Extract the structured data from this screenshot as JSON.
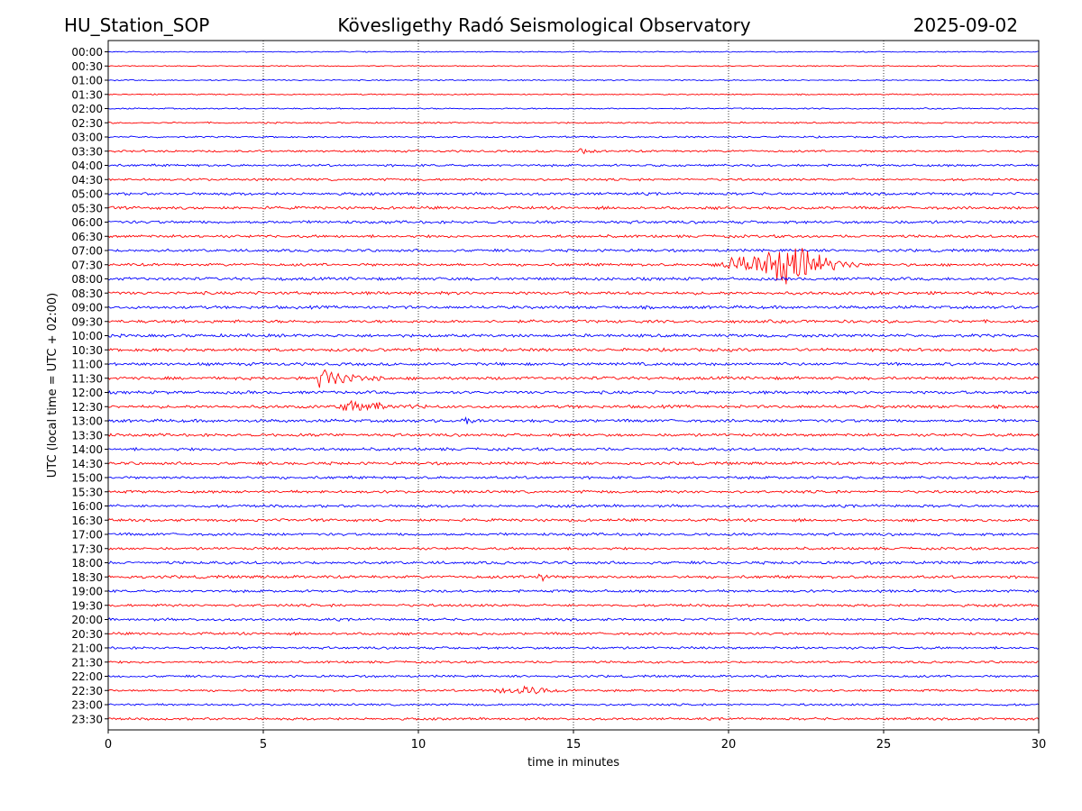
{
  "header": {
    "station": "HU_Station_SOP",
    "observatory": "Kövesligethy Radó Seismological Observatory",
    "date": "2025-09-02"
  },
  "chart_data": {
    "type": "line",
    "title": "Kövesligethy Radó Seismological Observatory",
    "xlabel": "time in minutes",
    "ylabel": "UTC (local time = UTC + 02:00)",
    "xlim": [
      0,
      30
    ],
    "x_ticks": [
      "0",
      "5",
      "10",
      "15",
      "20",
      "25",
      "30"
    ],
    "vertical_gridlines": "dotted at every 5 minutes",
    "trace_colors": [
      "#0000ff",
      "#ff0000"
    ],
    "rows": [
      "00:00",
      "00:30",
      "01:00",
      "01:30",
      "02:00",
      "02:30",
      "03:00",
      "03:30",
      "04:00",
      "04:30",
      "05:00",
      "05:30",
      "06:00",
      "06:30",
      "07:00",
      "07:30",
      "08:00",
      "08:30",
      "09:00",
      "09:30",
      "10:00",
      "10:30",
      "11:00",
      "11:30",
      "12:00",
      "12:30",
      "13:00",
      "13:30",
      "14:00",
      "14:30",
      "15:00",
      "15:30",
      "16:00",
      "16:30",
      "17:00",
      "17:30",
      "18:00",
      "18:30",
      "19:00",
      "19:30",
      "20:00",
      "20:30",
      "21:00",
      "21:30",
      "22:00",
      "22:30",
      "23:00",
      "23:30"
    ],
    "noise_levels": [
      0.35,
      0.35,
      0.4,
      0.4,
      0.45,
      0.5,
      0.55,
      0.7,
      0.75,
      0.75,
      0.9,
      0.95,
      0.95,
      0.9,
      0.9,
      0.9,
      1.0,
      1.0,
      1.0,
      1.0,
      1.0,
      1.0,
      1.0,
      1.0,
      1.0,
      1.0,
      1.0,
      0.95,
      0.95,
      0.95,
      0.9,
      0.9,
      0.9,
      0.9,
      0.9,
      0.85,
      0.95,
      0.95,
      0.85,
      0.85,
      0.85,
      0.85,
      0.8,
      0.75,
      0.75,
      0.75,
      0.7,
      0.8
    ],
    "events": [
      {
        "row": "03:30",
        "start": 15.1,
        "end": 15.9,
        "peak": 15.4,
        "amplitude": 1.3
      },
      {
        "row": "07:30",
        "start": 19.3,
        "end": 24.3,
        "peak": 22.4,
        "amplitude": 6.5
      },
      {
        "row": "11:30",
        "start": 6.7,
        "end": 9.0,
        "peak": 6.85,
        "amplitude": 3.5
      },
      {
        "row": "12:30",
        "start": 7.4,
        "end": 10.3,
        "peak": 7.7,
        "amplitude": 2.4
      },
      {
        "row": "13:00",
        "start": 11.2,
        "end": 12.0,
        "peak": 11.6,
        "amplitude": 1.2
      },
      {
        "row": "18:30",
        "start": 13.8,
        "end": 14.2,
        "peak": 14.0,
        "amplitude": 1.6
      },
      {
        "row": "22:30",
        "start": 12.0,
        "end": 16.0,
        "peak": 13.5,
        "amplitude": 1.2
      }
    ]
  }
}
